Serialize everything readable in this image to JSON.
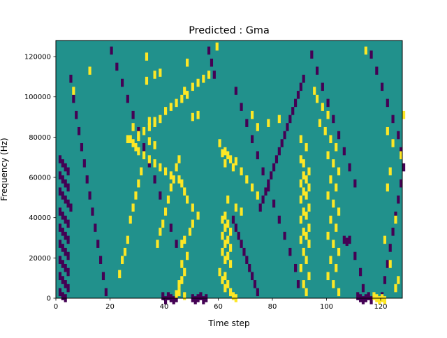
{
  "chart_data": {
    "type": "heatmap",
    "title": "Predicted : Gma",
    "xlabel": "Time step",
    "ylabel": "Frequency (Hz)",
    "xlim": [
      0,
      128
    ],
    "ylim": [
      0,
      128000
    ],
    "x_ticks": [
      0,
      20,
      40,
      60,
      80,
      100,
      120
    ],
    "y_ticks": [
      0,
      20000,
      40000,
      60000,
      80000,
      100000,
      120000
    ],
    "n_time_steps": 128,
    "n_freq_bins": 128,
    "grid": false,
    "legend": "none",
    "colors": {
      "background": "#21918c",
      "low": "#440154",
      "high": "#fde725"
    },
    "background_value": 0,
    "cells": {
      "high": [
        [
          59,
          126
        ],
        [
          33,
          121
        ],
        [
          48,
          118
        ],
        [
          12,
          114
        ],
        [
          6,
          104
        ],
        [
          33,
          109
        ],
        [
          36,
          112
        ],
        [
          38,
          113
        ],
        [
          47,
          104
        ],
        [
          52,
          92
        ],
        [
          50,
          91
        ],
        [
          34,
          89
        ],
        [
          36,
          89
        ],
        [
          28,
          86
        ],
        [
          72,
          92
        ],
        [
          74,
          86
        ],
        [
          78,
          88
        ],
        [
          82,
          90
        ],
        [
          27,
          80
        ],
        [
          30,
          81
        ],
        [
          34,
          79
        ],
        [
          36,
          77
        ],
        [
          60,
          78
        ],
        [
          62,
          74
        ],
        [
          61,
          73
        ],
        [
          63,
          72
        ],
        [
          62,
          68
        ],
        [
          64,
          70
        ],
        [
          66,
          69
        ],
        [
          65,
          66
        ],
        [
          68,
          64
        ],
        [
          70,
          60
        ],
        [
          72,
          56
        ],
        [
          74,
          52
        ],
        [
          63,
          50
        ],
        [
          66,
          46
        ],
        [
          68,
          44
        ],
        [
          62,
          42
        ],
        [
          61,
          40
        ],
        [
          63,
          38
        ],
        [
          62,
          36
        ],
        [
          64,
          34
        ],
        [
          61,
          32
        ],
        [
          63,
          30
        ],
        [
          62,
          28
        ],
        [
          64,
          26
        ],
        [
          61,
          24
        ],
        [
          63,
          22
        ],
        [
          62,
          20
        ],
        [
          64,
          18
        ],
        [
          60,
          14
        ],
        [
          62,
          12
        ],
        [
          61,
          10
        ],
        [
          63,
          8
        ],
        [
          62,
          6
        ],
        [
          64,
          4
        ],
        [
          65,
          2
        ],
        [
          66,
          1
        ],
        [
          47,
          2
        ],
        [
          44,
          3
        ],
        [
          45,
          4
        ],
        [
          45,
          8
        ],
        [
          46,
          10
        ],
        [
          47,
          14
        ],
        [
          46,
          18
        ],
        [
          48,
          22
        ],
        [
          46,
          28
        ],
        [
          47,
          30
        ],
        [
          49,
          34
        ],
        [
          50,
          38
        ],
        [
          52,
          42
        ],
        [
          50,
          46
        ],
        [
          48,
          50
        ],
        [
          47,
          54
        ],
        [
          46,
          58
        ],
        [
          45,
          60
        ],
        [
          42,
          62
        ],
        [
          40,
          64
        ],
        [
          38,
          66
        ],
        [
          36,
          68
        ],
        [
          34,
          70
        ],
        [
          32,
          72
        ],
        [
          30,
          74
        ],
        [
          29,
          76
        ],
        [
          28,
          78
        ],
        [
          26,
          80
        ],
        [
          30,
          82
        ],
        [
          32,
          84
        ],
        [
          34,
          86
        ],
        [
          36,
          88
        ],
        [
          38,
          90
        ],
        [
          40,
          94
        ],
        [
          42,
          96
        ],
        [
          44,
          98
        ],
        [
          46,
          100
        ],
        [
          48,
          102
        ],
        [
          50,
          106
        ],
        [
          52,
          108
        ],
        [
          54,
          110
        ],
        [
          56,
          112
        ],
        [
          90,
          80
        ],
        [
          92,
          76
        ],
        [
          90,
          70
        ],
        [
          91,
          68
        ],
        [
          93,
          64
        ],
        [
          91,
          62
        ],
        [
          92,
          60
        ],
        [
          90,
          58
        ],
        [
          93,
          56
        ],
        [
          91,
          54
        ],
        [
          92,
          52
        ],
        [
          90,
          50
        ],
        [
          93,
          46
        ],
        [
          91,
          44
        ],
        [
          92,
          42
        ],
        [
          90,
          40
        ],
        [
          93,
          36
        ],
        [
          91,
          34
        ],
        [
          92,
          32
        ],
        [
          90,
          30
        ],
        [
          93,
          28
        ],
        [
          91,
          24
        ],
        [
          92,
          20
        ],
        [
          90,
          16
        ],
        [
          93,
          12
        ],
        [
          91,
          8
        ],
        [
          92,
          4
        ],
        [
          95,
          104
        ],
        [
          96,
          100
        ],
        [
          98,
          96
        ],
        [
          100,
          92
        ],
        [
          97,
          88
        ],
        [
          99,
          84
        ],
        [
          101,
          80
        ],
        [
          103,
          76
        ],
        [
          100,
          72
        ],
        [
          102,
          68
        ],
        [
          104,
          64
        ],
        [
          101,
          60
        ],
        [
          103,
          56
        ],
        [
          100,
          52
        ],
        [
          102,
          48
        ],
        [
          104,
          44
        ],
        [
          101,
          40
        ],
        [
          103,
          36
        ],
        [
          100,
          32
        ],
        [
          102,
          28
        ],
        [
          104,
          24
        ],
        [
          101,
          20
        ],
        [
          103,
          16
        ],
        [
          100,
          12
        ],
        [
          102,
          8
        ],
        [
          104,
          4
        ],
        [
          117,
          2
        ],
        [
          118,
          1
        ],
        [
          119,
          0
        ],
        [
          120,
          1
        ],
        [
          121,
          0
        ],
        [
          114,
          124
        ],
        [
          122,
          84
        ],
        [
          128,
          92
        ],
        [
          127,
          72
        ],
        [
          124,
          78
        ],
        [
          123,
          64
        ],
        [
          125,
          40
        ],
        [
          122,
          56
        ],
        [
          121,
          30
        ],
        [
          123,
          18
        ],
        [
          126,
          10
        ],
        [
          125,
          6
        ],
        [
          23,
          13
        ],
        [
          24,
          20
        ],
        [
          25,
          24
        ],
        [
          26,
          30
        ],
        [
          27,
          40
        ],
        [
          28,
          46
        ],
        [
          29,
          52
        ],
        [
          30,
          58
        ],
        [
          31,
          64
        ],
        [
          37,
          28
        ],
        [
          38,
          34
        ],
        [
          39,
          38
        ],
        [
          40,
          44
        ],
        [
          41,
          50
        ],
        [
          42,
          56
        ],
        [
          43,
          60
        ],
        [
          44,
          66
        ],
        [
          45,
          70
        ]
      ],
      "low": [
        [
          1,
          70
        ],
        [
          2,
          68
        ],
        [
          3,
          66
        ],
        [
          4,
          64
        ],
        [
          1,
          62
        ],
        [
          2,
          60
        ],
        [
          3,
          58
        ],
        [
          4,
          56
        ],
        [
          1,
          54
        ],
        [
          2,
          52
        ],
        [
          3,
          50
        ],
        [
          4,
          48
        ],
        [
          5,
          46
        ],
        [
          1,
          44
        ],
        [
          2,
          42
        ],
        [
          3,
          40
        ],
        [
          4,
          38
        ],
        [
          1,
          36
        ],
        [
          2,
          34
        ],
        [
          3,
          32
        ],
        [
          4,
          30
        ],
        [
          1,
          28
        ],
        [
          2,
          26
        ],
        [
          3,
          24
        ],
        [
          4,
          22
        ],
        [
          1,
          20
        ],
        [
          2,
          18
        ],
        [
          3,
          16
        ],
        [
          4,
          14
        ],
        [
          1,
          12
        ],
        [
          2,
          10
        ],
        [
          3,
          8
        ],
        [
          4,
          6
        ],
        [
          1,
          4
        ],
        [
          2,
          2
        ],
        [
          3,
          1
        ],
        [
          5,
          110
        ],
        [
          6,
          100
        ],
        [
          7,
          92
        ],
        [
          8,
          84
        ],
        [
          9,
          76
        ],
        [
          10,
          68
        ],
        [
          11,
          60
        ],
        [
          12,
          52
        ],
        [
          13,
          44
        ],
        [
          14,
          36
        ],
        [
          15,
          28
        ],
        [
          16,
          20
        ],
        [
          17,
          12
        ],
        [
          18,
          4
        ],
        [
          20,
          124
        ],
        [
          22,
          116
        ],
        [
          24,
          108
        ],
        [
          26,
          100
        ],
        [
          28,
          92
        ],
        [
          30,
          84
        ],
        [
          32,
          76
        ],
        [
          34,
          68
        ],
        [
          36,
          60
        ],
        [
          38,
          52
        ],
        [
          40,
          44
        ],
        [
          42,
          36
        ],
        [
          44,
          28
        ],
        [
          41,
          2
        ],
        [
          42,
          1
        ],
        [
          43,
          0
        ],
        [
          44,
          1
        ],
        [
          40,
          0
        ],
        [
          39,
          2
        ],
        [
          50,
          1
        ],
        [
          51,
          0
        ],
        [
          52,
          1
        ],
        [
          53,
          2
        ],
        [
          54,
          0
        ],
        [
          55,
          1
        ],
        [
          56,
          124
        ],
        [
          57,
          118
        ],
        [
          58,
          112
        ],
        [
          66,
          104
        ],
        [
          68,
          96
        ],
        [
          70,
          88
        ],
        [
          72,
          80
        ],
        [
          74,
          72
        ],
        [
          76,
          64
        ],
        [
          78,
          56
        ],
        [
          80,
          48
        ],
        [
          82,
          40
        ],
        [
          84,
          32
        ],
        [
          86,
          24
        ],
        [
          88,
          16
        ],
        [
          89,
          8
        ],
        [
          94,
          122
        ],
        [
          96,
          114
        ],
        [
          98,
          106
        ],
        [
          100,
          98
        ],
        [
          102,
          90
        ],
        [
          104,
          82
        ],
        [
          106,
          74
        ],
        [
          108,
          66
        ],
        [
          110,
          58
        ],
        [
          106,
          30
        ],
        [
          107,
          29
        ],
        [
          108,
          30
        ],
        [
          110,
          22
        ],
        [
          112,
          14
        ],
        [
          113,
          6
        ],
        [
          111,
          2
        ],
        [
          112,
          1
        ],
        [
          113,
          0
        ],
        [
          114,
          1
        ],
        [
          115,
          2
        ],
        [
          116,
          0
        ],
        [
          116,
          122
        ],
        [
          118,
          114
        ],
        [
          120,
          106
        ],
        [
          122,
          98
        ],
        [
          124,
          90
        ],
        [
          126,
          82
        ],
        [
          127,
          74
        ],
        [
          128,
          66
        ],
        [
          127,
          58
        ],
        [
          126,
          50
        ],
        [
          125,
          42
        ],
        [
          124,
          34
        ],
        [
          123,
          26
        ],
        [
          122,
          18
        ],
        [
          121,
          10
        ],
        [
          120,
          2
        ],
        [
          65,
          40
        ],
        [
          66,
          36
        ],
        [
          67,
          32
        ],
        [
          68,
          28
        ],
        [
          69,
          24
        ],
        [
          70,
          20
        ],
        [
          71,
          16
        ],
        [
          72,
          12
        ],
        [
          73,
          8
        ],
        [
          74,
          4
        ],
        [
          75,
          46
        ],
        [
          76,
          50
        ],
        [
          77,
          54
        ],
        [
          78,
          58
        ],
        [
          79,
          62
        ],
        [
          80,
          66
        ],
        [
          81,
          70
        ],
        [
          82,
          74
        ],
        [
          83,
          78
        ],
        [
          84,
          82
        ],
        [
          85,
          86
        ],
        [
          86,
          90
        ],
        [
          87,
          94
        ],
        [
          88,
          98
        ],
        [
          89,
          102
        ],
        [
          90,
          106
        ],
        [
          91,
          110
        ]
      ]
    }
  }
}
